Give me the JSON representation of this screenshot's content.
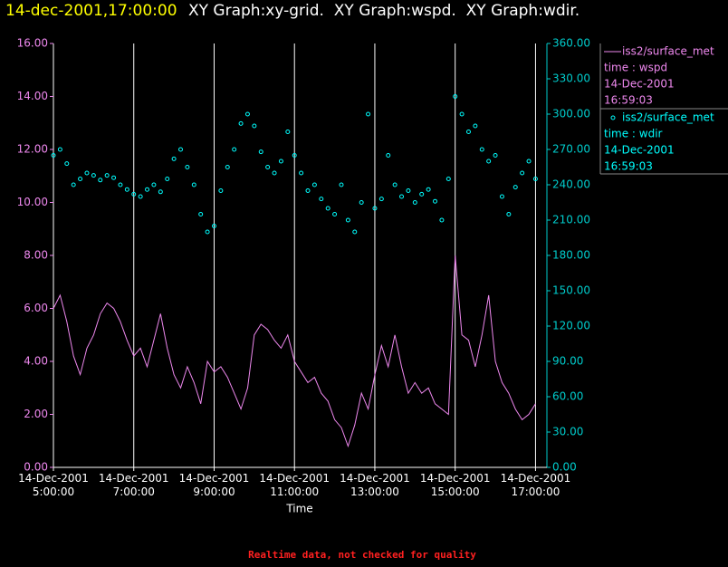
{
  "chart_data": {
    "type": "line",
    "timestamp": "14-dec-2001,17:00:00",
    "title": "XY Graph:xy-grid.  XY Graph:wspd.  XY Graph:wdir.",
    "x_label": "Time",
    "footer": "Realtime data, not checked for quality",
    "grid": true,
    "x": [
      "2001-12-14T05:00:00",
      "2001-12-14T05:10:00",
      "2001-12-14T05:20:00",
      "2001-12-14T05:30:00",
      "2001-12-14T05:40:00",
      "2001-12-14T05:50:00",
      "2001-12-14T06:00:00",
      "2001-12-14T06:10:00",
      "2001-12-14T06:20:00",
      "2001-12-14T06:30:00",
      "2001-12-14T06:40:00",
      "2001-12-14T06:50:00",
      "2001-12-14T07:00:00",
      "2001-12-14T07:10:00",
      "2001-12-14T07:20:00",
      "2001-12-14T07:30:00",
      "2001-12-14T07:40:00",
      "2001-12-14T07:50:00",
      "2001-12-14T08:00:00",
      "2001-12-14T08:10:00",
      "2001-12-14T08:20:00",
      "2001-12-14T08:30:00",
      "2001-12-14T08:40:00",
      "2001-12-14T08:50:00",
      "2001-12-14T09:00:00",
      "2001-12-14T09:10:00",
      "2001-12-14T09:20:00",
      "2001-12-14T09:30:00",
      "2001-12-14T09:40:00",
      "2001-12-14T09:50:00",
      "2001-12-14T10:00:00",
      "2001-12-14T10:10:00",
      "2001-12-14T10:20:00",
      "2001-12-14T10:30:00",
      "2001-12-14T10:40:00",
      "2001-12-14T10:50:00",
      "2001-12-14T11:00:00",
      "2001-12-14T11:10:00",
      "2001-12-14T11:20:00",
      "2001-12-14T11:30:00",
      "2001-12-14T11:40:00",
      "2001-12-14T11:50:00",
      "2001-12-14T12:00:00",
      "2001-12-14T12:10:00",
      "2001-12-14T12:20:00",
      "2001-12-14T12:30:00",
      "2001-12-14T12:40:00",
      "2001-12-14T12:50:00",
      "2001-12-14T13:00:00",
      "2001-12-14T13:10:00",
      "2001-12-14T13:20:00",
      "2001-12-14T13:30:00",
      "2001-12-14T13:40:00",
      "2001-12-14T13:50:00",
      "2001-12-14T14:00:00",
      "2001-12-14T14:10:00",
      "2001-12-14T14:20:00",
      "2001-12-14T14:30:00",
      "2001-12-14T14:40:00",
      "2001-12-14T14:50:00",
      "2001-12-14T15:00:00",
      "2001-12-14T15:10:00",
      "2001-12-14T15:20:00",
      "2001-12-14T15:30:00",
      "2001-12-14T15:40:00",
      "2001-12-14T15:50:00",
      "2001-12-14T16:00:00",
      "2001-12-14T16:10:00",
      "2001-12-14T16:20:00",
      "2001-12-14T16:30:00",
      "2001-12-14T16:40:00",
      "2001-12-14T16:50:00",
      "2001-12-14T17:00:00"
    ],
    "xlim": [
      "2001-12-14T05:00:00",
      "2001-12-14T17:17:00"
    ],
    "xticks": [
      {
        "value": "2001-12-14T05:00:00",
        "label": "14-Dec-2001\n5:00:00"
      },
      {
        "value": "2001-12-14T07:00:00",
        "label": "14-Dec-2001\n7:00:00"
      },
      {
        "value": "2001-12-14T09:00:00",
        "label": "14-Dec-2001\n9:00:00"
      },
      {
        "value": "2001-12-14T11:00:00",
        "label": "14-Dec-2001\n11:00:00"
      },
      {
        "value": "2001-12-14T13:00:00",
        "label": "14-Dec-2001\n13:00:00"
      },
      {
        "value": "2001-12-14T15:00:00",
        "label": "14-Dec-2001\n15:00:00"
      },
      {
        "value": "2001-12-14T17:00:00",
        "label": "14-Dec-2001\n17:00:00"
      }
    ],
    "ylim": [
      0,
      16
    ],
    "yticks": [
      {
        "value": 0,
        "label": "0.00"
      },
      {
        "value": 2,
        "label": "2.00"
      },
      {
        "value": 4,
        "label": "4.00"
      },
      {
        "value": 6,
        "label": "6.00"
      },
      {
        "value": 8,
        "label": "8.00"
      },
      {
        "value": 10,
        "label": "10.00"
      },
      {
        "value": 12,
        "label": "12.00"
      },
      {
        "value": 14,
        "label": "14.00"
      },
      {
        "value": 16,
        "label": "16.00"
      }
    ],
    "y2lim": [
      0,
      360
    ],
    "y2ticks": [
      {
        "value": 0,
        "label": "0.00"
      },
      {
        "value": 30,
        "label": "30.00"
      },
      {
        "value": 60,
        "label": "60.00"
      },
      {
        "value": 90,
        "label": "90.00"
      },
      {
        "value": 120,
        "label": "120.00"
      },
      {
        "value": 150,
        "label": "150.00"
      },
      {
        "value": 180,
        "label": "180.00"
      },
      {
        "value": 210,
        "label": "210.00"
      },
      {
        "value": 240,
        "label": "240.00"
      },
      {
        "value": 270,
        "label": "270.00"
      },
      {
        "value": 300,
        "label": "300.00"
      },
      {
        "value": 330,
        "label": "330.00"
      },
      {
        "value": 360,
        "label": "360.00"
      }
    ],
    "series": [
      {
        "name": "iss2/surface_met",
        "mode": "line",
        "axis": "y",
        "color": "#ee88ee",
        "legend_info": [
          "time : wspd",
          "14-Dec-2001",
          "16:59:03"
        ],
        "values": [
          6.0,
          6.5,
          5.5,
          4.2,
          3.5,
          4.5,
          5.0,
          5.8,
          6.2,
          6.0,
          5.5,
          4.8,
          4.2,
          4.5,
          3.8,
          4.8,
          5.8,
          4.5,
          3.5,
          3.0,
          3.8,
          3.2,
          2.4,
          4.0,
          3.6,
          3.8,
          3.4,
          2.8,
          2.2,
          3.0,
          5.0,
          5.4,
          5.2,
          4.8,
          4.5,
          5.0,
          4.0,
          3.6,
          3.2,
          3.4,
          2.8,
          2.5,
          1.8,
          1.5,
          0.8,
          1.6,
          2.8,
          2.2,
          3.5,
          4.6,
          3.8,
          5.0,
          3.8,
          2.8,
          3.2,
          2.8,
          3.0,
          2.4,
          2.2,
          2.0,
          8.0,
          5.0,
          4.8,
          3.8,
          5.0,
          6.5,
          4.0,
          3.2,
          2.8,
          2.2,
          1.8,
          2.0,
          2.4
        ]
      },
      {
        "name": "iss2/surface_met",
        "mode": "markers",
        "axis": "y2",
        "color": "#00ffff",
        "legend_info": [
          "time : wdir",
          "14-Dec-2001",
          "16:59:03"
        ],
        "values": [
          265,
          270,
          258,
          240,
          245,
          250,
          248,
          244,
          248,
          246,
          240,
          236,
          232,
          230,
          236,
          240,
          234,
          245,
          262,
          270,
          255,
          240,
          215,
          200,
          205,
          235,
          255,
          270,
          292,
          300,
          290,
          268,
          255,
          250,
          260,
          285,
          265,
          250,
          235,
          240,
          228,
          220,
          215,
          240,
          210,
          200,
          225,
          300,
          220,
          228,
          265,
          240,
          230,
          235,
          225,
          232,
          236,
          226,
          210,
          245,
          315,
          300,
          285,
          290,
          270,
          260,
          265,
          230,
          215,
          238,
          250,
          260,
          245
        ]
      }
    ]
  }
}
